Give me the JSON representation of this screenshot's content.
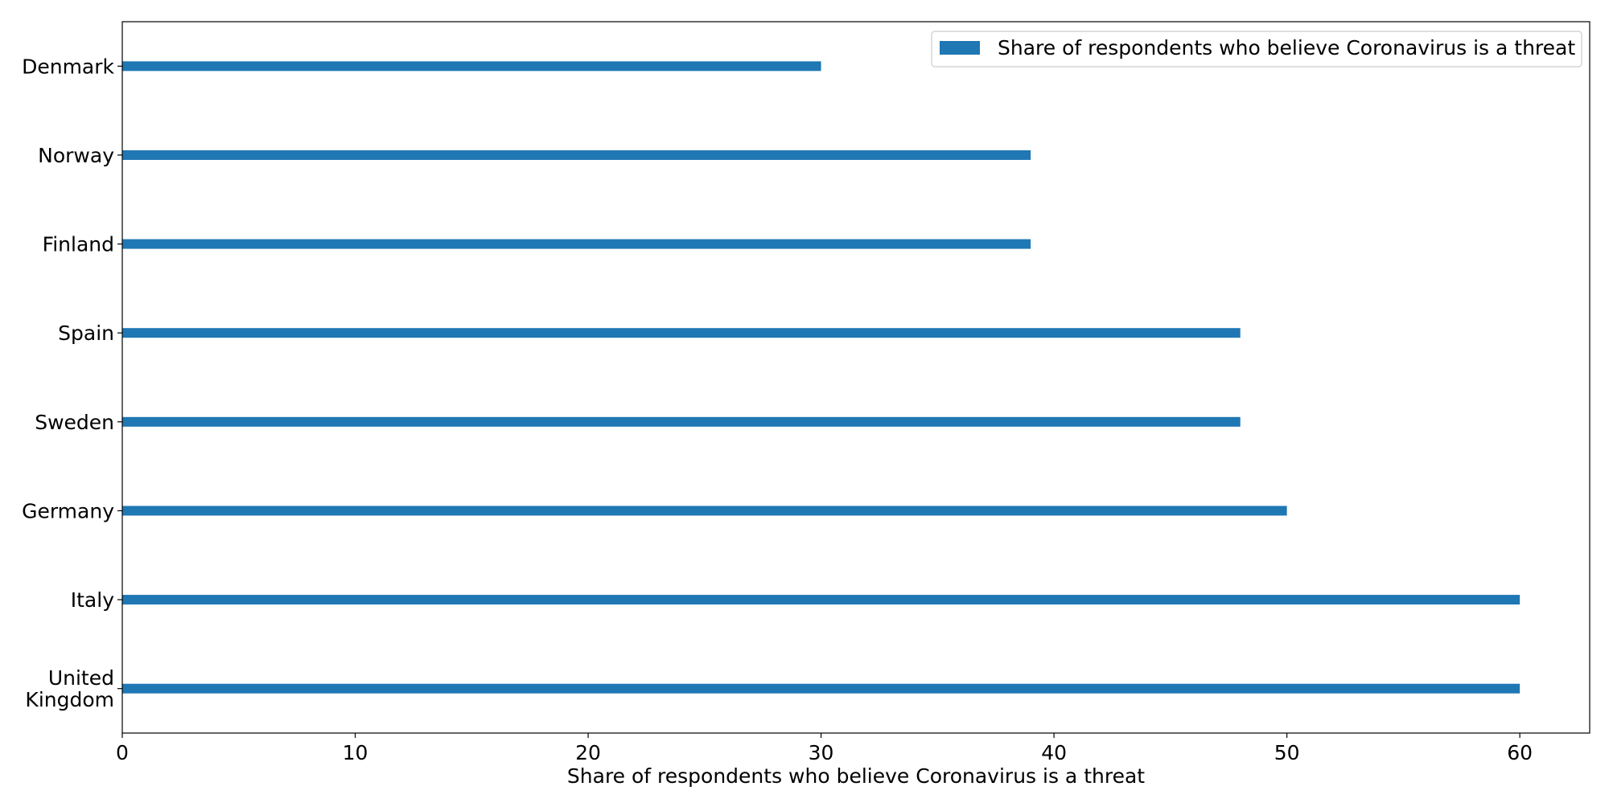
{
  "chart_data": {
    "type": "bar",
    "orientation": "horizontal",
    "categories": [
      "United Kingdom",
      "Italy",
      "Germany",
      "Sweden",
      "Spain",
      "Finland",
      "Norway",
      "Denmark"
    ],
    "category_display": [
      [
        "United",
        "Kingdom"
      ],
      [
        "Italy"
      ],
      [
        "Germany"
      ],
      [
        "Sweden"
      ],
      [
        "Spain"
      ],
      [
        "Finland"
      ],
      [
        "Norway"
      ],
      [
        "Denmark"
      ]
    ],
    "series": [
      {
        "name": "Share of respondents who believe Coronavirus is a threat",
        "values": [
          60,
          60,
          50,
          48,
          48,
          39,
          39,
          30
        ],
        "color": "#1f77b4"
      }
    ],
    "title": "",
    "xlabel": "Share of respondents who believe Coronavirus is a threat",
    "ylabel": "",
    "xlim": [
      0,
      63
    ],
    "xticks": [
      0,
      10,
      20,
      30,
      40,
      50,
      60
    ],
    "grid": false,
    "legend_position": "top-right"
  }
}
